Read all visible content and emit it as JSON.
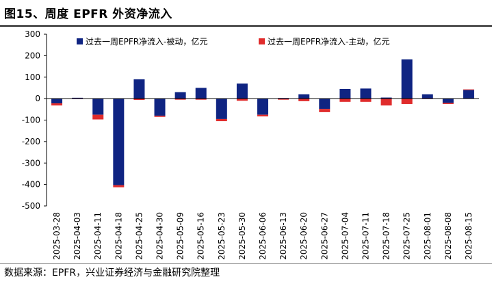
{
  "header": {
    "title": "图15、周度 EPFR 外资净流入"
  },
  "footer": {
    "source": "数据来源：EPFR，兴业证券经济与金融研究院整理"
  },
  "colors": {
    "passive": "#0f2482",
    "active": "#e02c2c"
  },
  "chart_data": {
    "type": "bar",
    "stacked": true,
    "title": "图15、周度 EPFR 外资净流入",
    "xlabel": "",
    "ylabel": "",
    "ylim": [
      -500,
      300
    ],
    "yticks": [
      300,
      200,
      100,
      0,
      -100,
      -200,
      -300,
      -400,
      -500
    ],
    "grid": false,
    "legend_position": "top",
    "categories": [
      "2025-03-28",
      "2025-04-03",
      "2025-04-11",
      "2025-04-18",
      "2025-04-25",
      "2025-04-30",
      "2025-05-09",
      "2025-05-16",
      "2025-05-23",
      "2025-05-30",
      "2025-06-06",
      "2025-06-13",
      "2025-06-20",
      "2025-06-27",
      "2025-07-04",
      "2025-07-11",
      "2025-07-18",
      "2025-07-25",
      "2025-08-01",
      "2025-08-08",
      "2025-08-15"
    ],
    "series": [
      {
        "name": "过去一周EPFR净流入-被动，亿元",
        "color": "#0f2482",
        "values": [
          -22,
          4,
          -75,
          -403,
          90,
          -80,
          30,
          50,
          -95,
          70,
          -75,
          3,
          20,
          -48,
          45,
          47,
          5,
          183,
          20,
          -20,
          40
        ]
      },
      {
        "name": "过去一周EPFR净流入-主动，亿元",
        "color": "#e02c2c",
        "values": [
          -10,
          -2,
          -22,
          -10,
          -6,
          -5,
          -5,
          -5,
          -10,
          -10,
          -8,
          -5,
          -12,
          -15,
          -15,
          -15,
          -32,
          -25,
          -2,
          -5,
          3
        ]
      }
    ]
  }
}
